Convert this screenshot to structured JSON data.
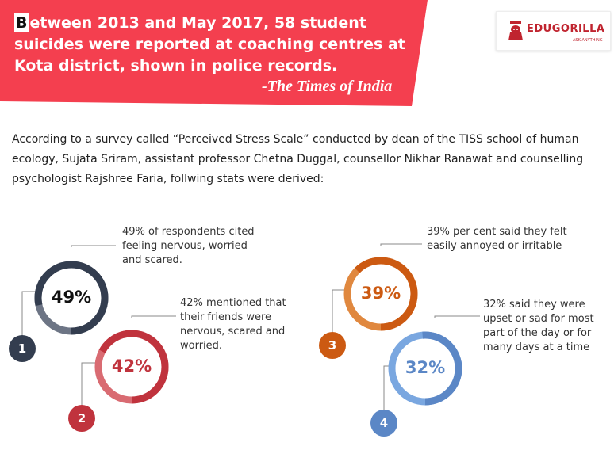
{
  "header": {
    "dropcap": "B",
    "headline": "etween 2013 and May 2017, 58 student suicides were reported at coaching centres at Kota district, shown in police records.",
    "source": "-The Times of India",
    "bg_color": "#f43f4f"
  },
  "logo": {
    "name": "EDUGORILLA",
    "tagline": "ASK ANYTHING",
    "icon": "gorilla-icon",
    "color": "#c0242f"
  },
  "intro": "According to a survey called “Perceived Stress Scale” conducted by dean of the TISS school of human ecology, Sujata Sriram, assistant professor Chetna Duggal, counsellor Nikhar Ranawat and counselling psychologist Rajshree Faria, follwing stats were derived:",
  "stats": [
    {
      "number": "1",
      "percent_label": "49%",
      "value": 49,
      "text": "49% of respondents cited feeling nervous, worried and scared.",
      "color": "#333d4f",
      "track": "#6d7585"
    },
    {
      "number": "2",
      "percent_label": "42%",
      "value": 42,
      "text": "42% mentioned that their friends were nervous, scared and worried.",
      "color": "#c0333d",
      "track": "#d96b72"
    },
    {
      "number": "3",
      "percent_label": "39%",
      "value": 39,
      "text": "39% per cent said they felt easily annoyed or irritable",
      "color": "#cc5a12",
      "track": "#e0883f"
    },
    {
      "number": "4",
      "percent_label": "32%",
      "value": 32,
      "text": "32% said they were upset or sad for most part of the day or for many days at a time",
      "color": "#5b87c6",
      "track": "#7aa7e0"
    }
  ]
}
